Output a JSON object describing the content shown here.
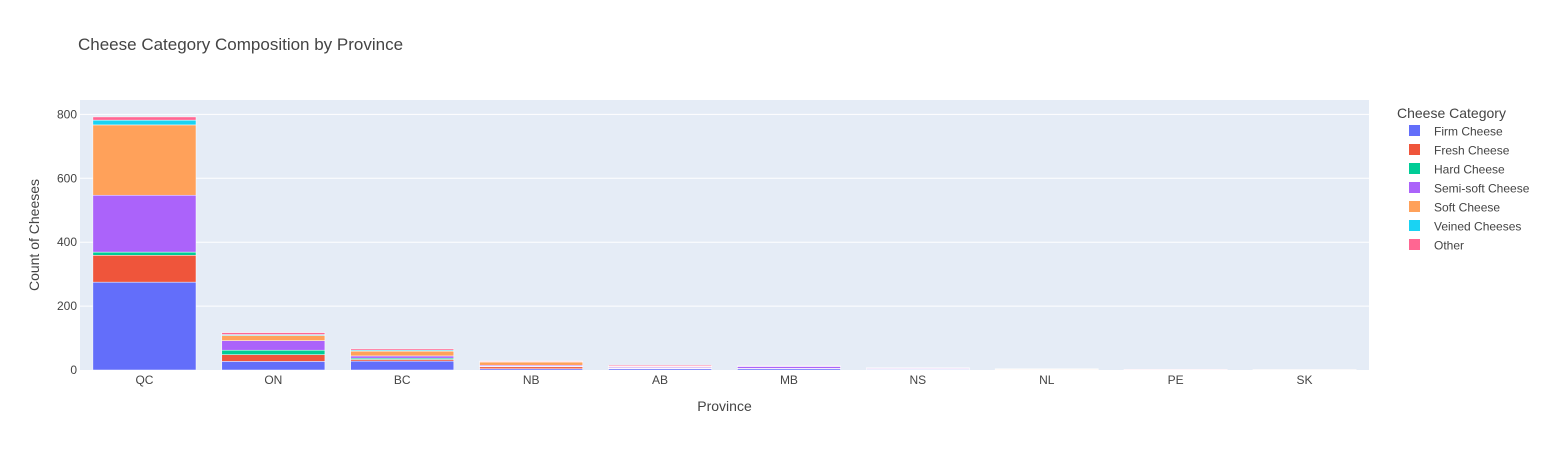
{
  "chart_data": {
    "type": "bar",
    "barmode": "stack",
    "title": "Cheese Category Composition by Province",
    "xlabel": "Province",
    "ylabel": "Count of Cheeses",
    "ylim": [
      0,
      800
    ],
    "yticks": [
      0,
      200,
      400,
      600,
      800
    ],
    "grid": true,
    "legend_placement": "right",
    "legend_title": "Cheese Category",
    "categories": [
      "QC",
      "ON",
      "BC",
      "NB",
      "AB",
      "MB",
      "NS",
      "NL",
      "PE",
      "SK"
    ],
    "series": [
      {
        "name": "Firm Cheese",
        "color": "#636efa",
        "values": [
          275,
          27,
          28,
          4,
          4,
          4,
          2,
          1,
          0.5,
          0.5
        ]
      },
      {
        "name": "Fresh Cheese",
        "color": "#ef553b",
        "values": [
          84,
          21,
          5,
          6,
          1,
          1,
          1,
          1,
          0.5,
          0
        ]
      },
      {
        "name": "Hard Cheese",
        "color": "#00cc96",
        "values": [
          10,
          14,
          4,
          2,
          1,
          0,
          0.5,
          0,
          0,
          0
        ]
      },
      {
        "name": "Semi-soft Cheese",
        "color": "#ab63fa",
        "values": [
          178,
          30,
          7,
          3,
          3,
          6,
          2,
          1,
          0.5,
          0.5
        ]
      },
      {
        "name": "Soft Cheese",
        "color": "#ffa15a",
        "values": [
          220,
          16,
          15,
          10,
          2,
          1,
          0.5,
          0.5,
          0,
          0.5
        ]
      },
      {
        "name": "Veined Cheeses",
        "color": "#19d3f3",
        "values": [
          15,
          3,
          3,
          1,
          1,
          0,
          0,
          0,
          0,
          0
        ]
      },
      {
        "name": "Other",
        "color": "#ff6692",
        "values": [
          10,
          6,
          4,
          2,
          3,
          1,
          1,
          0.5,
          0.5,
          0
        ]
      }
    ]
  }
}
